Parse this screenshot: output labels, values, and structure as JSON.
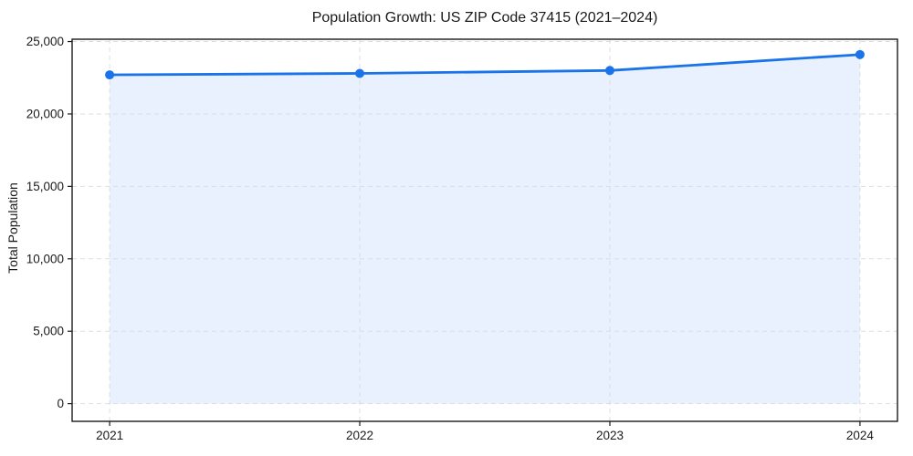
{
  "chart_data": {
    "type": "line",
    "title": "Population Growth: US ZIP Code 37415 (2021–2024)",
    "xlabel": "",
    "ylabel": "Total Population",
    "x": [
      2021,
      2022,
      2023,
      2024
    ],
    "x_tick_labels": [
      "2021",
      "2022",
      "2023",
      "2024"
    ],
    "series": [
      {
        "name": "Total Population",
        "values": [
          22700,
          22800,
          23000,
          24100
        ]
      }
    ],
    "yticks": [
      0,
      5000,
      10000,
      15000,
      20000,
      25000
    ],
    "y_tick_labels": [
      "0",
      "5,000",
      "10,000",
      "15,000",
      "20,000",
      "25,000"
    ],
    "xlim": [
      2020.85,
      2024.15
    ],
    "ylim": [
      -1220,
      25160
    ],
    "area_baseline": 0,
    "grid": true,
    "grid_style": "dashed",
    "legend": false,
    "colors": {
      "line": "#1a73e8",
      "marker": "#1a73e8",
      "area_fill": "#e8f1fd",
      "gridline": "#d9d9d9",
      "spine": "#1a1a1a",
      "text": "#1a1a1a",
      "background": "#ffffff"
    }
  }
}
